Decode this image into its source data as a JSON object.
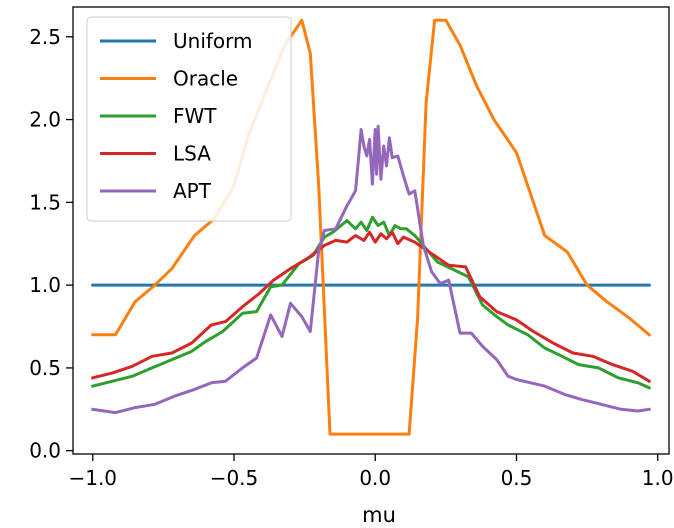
{
  "chart_data": {
    "type": "line",
    "title": "",
    "xlabel": "mu",
    "ylabel": "",
    "xlim": [
      -1.07,
      1.04
    ],
    "ylim": [
      -0.02,
      2.68
    ],
    "xticks": [
      -1.0,
      -0.5,
      0.0,
      0.5,
      1.0
    ],
    "xtick_labels": [
      "−1.0",
      "−0.5",
      "0.0",
      "0.5",
      "1.0"
    ],
    "yticks": [
      0.0,
      0.5,
      1.0,
      1.5,
      2.0,
      2.5
    ],
    "ytick_labels": [
      "0.0",
      "0.5",
      "1.0",
      "1.5",
      "2.0",
      "2.5"
    ],
    "grid": false,
    "legend_position": "upper-left",
    "series": [
      {
        "name": "Uniform",
        "color": "#1f77b4",
        "x": [
          -1.0,
          0.97
        ],
        "y": [
          1.0,
          1.0
        ]
      },
      {
        "name": "Oracle",
        "color": "#ff7f0e",
        "x": [
          -1.0,
          -0.92,
          -0.85,
          -0.78,
          -0.72,
          -0.64,
          -0.57,
          -0.5,
          -0.45,
          -0.38,
          -0.32,
          -0.26,
          -0.23,
          -0.2,
          -0.16,
          -0.12,
          -0.08,
          0.0,
          0.08,
          0.12,
          0.15,
          0.18,
          0.21,
          0.25,
          0.3,
          0.36,
          0.42,
          0.5,
          0.6,
          0.68,
          0.75,
          0.82,
          0.9,
          0.97
        ],
        "y": [
          0.7,
          0.7,
          0.9,
          1.0,
          1.1,
          1.3,
          1.4,
          1.6,
          1.9,
          2.2,
          2.45,
          2.6,
          2.4,
          1.6,
          0.1,
          0.1,
          0.1,
          0.1,
          0.1,
          0.1,
          0.8,
          2.1,
          2.6,
          2.6,
          2.45,
          2.2,
          2.0,
          1.8,
          1.3,
          1.2,
          1.0,
          0.9,
          0.8,
          0.7
        ]
      },
      {
        "name": "FWT",
        "color": "#2ca02c",
        "x": [
          -1.0,
          -0.93,
          -0.86,
          -0.79,
          -0.72,
          -0.65,
          -0.6,
          -0.54,
          -0.47,
          -0.42,
          -0.37,
          -0.33,
          -0.27,
          -0.22,
          -0.18,
          -0.15,
          -0.1,
          -0.07,
          -0.05,
          -0.03,
          -0.01,
          0.01,
          0.03,
          0.05,
          0.07,
          0.09,
          0.11,
          0.14,
          0.18,
          0.22,
          0.27,
          0.33,
          0.38,
          0.43,
          0.47,
          0.54,
          0.6,
          0.65,
          0.72,
          0.79,
          0.86,
          0.93,
          0.97
        ],
        "y": [
          0.39,
          0.42,
          0.45,
          0.5,
          0.55,
          0.6,
          0.66,
          0.72,
          0.83,
          0.84,
          0.99,
          1.0,
          1.13,
          1.18,
          1.29,
          1.32,
          1.39,
          1.34,
          1.38,
          1.33,
          1.41,
          1.36,
          1.38,
          1.3,
          1.36,
          1.34,
          1.34,
          1.3,
          1.22,
          1.14,
          1.1,
          1.05,
          0.88,
          0.81,
          0.76,
          0.7,
          0.62,
          0.58,
          0.52,
          0.5,
          0.44,
          0.41,
          0.38
        ]
      },
      {
        "name": "LSA",
        "color": "#d62728",
        "x": [
          -1.0,
          -0.93,
          -0.86,
          -0.79,
          -0.72,
          -0.65,
          -0.58,
          -0.53,
          -0.47,
          -0.41,
          -0.36,
          -0.3,
          -0.24,
          -0.18,
          -0.14,
          -0.1,
          -0.07,
          -0.04,
          -0.02,
          0.0,
          0.02,
          0.04,
          0.06,
          0.08,
          0.1,
          0.14,
          0.2,
          0.26,
          0.32,
          0.37,
          0.43,
          0.5,
          0.56,
          0.63,
          0.7,
          0.77,
          0.84,
          0.91,
          0.97
        ],
        "y": [
          0.44,
          0.47,
          0.51,
          0.57,
          0.59,
          0.65,
          0.76,
          0.78,
          0.87,
          0.95,
          1.03,
          1.1,
          1.16,
          1.24,
          1.27,
          1.26,
          1.3,
          1.27,
          1.32,
          1.26,
          1.31,
          1.28,
          1.32,
          1.25,
          1.29,
          1.26,
          1.19,
          1.12,
          1.11,
          0.93,
          0.84,
          0.79,
          0.72,
          0.65,
          0.59,
          0.57,
          0.52,
          0.48,
          0.42
        ]
      },
      {
        "name": "APT",
        "color": "#9467bd",
        "x": [
          -1.0,
          -0.92,
          -0.85,
          -0.78,
          -0.71,
          -0.64,
          -0.58,
          -0.53,
          -0.47,
          -0.42,
          -0.37,
          -0.33,
          -0.3,
          -0.26,
          -0.23,
          -0.2,
          -0.18,
          -0.14,
          -0.1,
          -0.07,
          -0.06,
          -0.05,
          -0.04,
          -0.03,
          -0.02,
          -0.01,
          0.0,
          0.005,
          0.01,
          0.02,
          0.03,
          0.04,
          0.05,
          0.06,
          0.08,
          0.1,
          0.12,
          0.14,
          0.17,
          0.2,
          0.23,
          0.26,
          0.3,
          0.34,
          0.38,
          0.43,
          0.47,
          0.5,
          0.55,
          0.6,
          0.67,
          0.73,
          0.8,
          0.87,
          0.93,
          0.97
        ],
        "y": [
          0.25,
          0.23,
          0.26,
          0.28,
          0.33,
          0.37,
          0.41,
          0.42,
          0.5,
          0.56,
          0.82,
          0.69,
          0.89,
          0.81,
          0.72,
          1.21,
          1.33,
          1.34,
          1.48,
          1.57,
          1.75,
          1.94,
          1.84,
          1.78,
          1.88,
          1.61,
          1.94,
          1.67,
          1.96,
          1.64,
          1.84,
          1.72,
          1.89,
          1.77,
          1.78,
          1.66,
          1.55,
          1.57,
          1.24,
          1.08,
          1.01,
          1.03,
          0.71,
          0.71,
          0.63,
          0.55,
          0.45,
          0.43,
          0.41,
          0.39,
          0.34,
          0.31,
          0.28,
          0.25,
          0.24,
          0.25
        ]
      }
    ]
  }
}
